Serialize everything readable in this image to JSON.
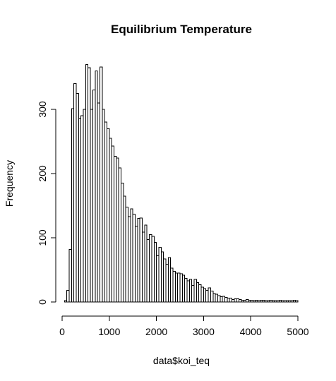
{
  "chart_data": {
    "type": "bar",
    "title": "Equilibrium Temperature",
    "xlabel": "data$koi_teq",
    "ylabel": "Frequency",
    "xlim": [
      0,
      5000
    ],
    "ylim": [
      0,
      370
    ],
    "bin_width": 50,
    "x_ticks": [
      0,
      1000,
      2000,
      3000,
      4000,
      5000
    ],
    "x_tick_labels": [
      "0",
      "1000",
      "2000",
      "3000",
      "4000",
      "5000"
    ],
    "y_ticks": [
      0,
      100,
      200,
      300
    ],
    "y_tick_labels": [
      "0",
      "100",
      "200",
      "300"
    ],
    "grid": false,
    "legend": "none",
    "bins_start": [
      50,
      100,
      150,
      200,
      250,
      300,
      350,
      400,
      450,
      500,
      550,
      600,
      650,
      700,
      750,
      800,
      850,
      900,
      950,
      1000,
      1050,
      1100,
      1150,
      1200,
      1250,
      1300,
      1350,
      1400,
      1450,
      1500,
      1550,
      1600,
      1650,
      1700,
      1750,
      1800,
      1850,
      1900,
      1950,
      2000,
      2050,
      2100,
      2150,
      2200,
      2250,
      2300,
      2350,
      2400,
      2450,
      2500,
      2550,
      2600,
      2650,
      2700,
      2750,
      2800,
      2850,
      2900,
      2950,
      3000,
      3050,
      3100,
      3150,
      3200,
      3250,
      3300,
      3350,
      3400,
      3450,
      3500,
      3550,
      3600,
      3650,
      3700,
      3750,
      3800,
      3850,
      3900,
      3950,
      4000,
      4050,
      4100,
      4150,
      4200,
      4250,
      4300,
      4350,
      4400,
      4450,
      4500,
      4550,
      4600,
      4650,
      4700,
      4750,
      4800,
      4850,
      4900,
      4950
    ],
    "values": [
      2,
      18,
      82,
      301,
      340,
      325,
      286,
      290,
      300,
      370,
      365,
      300,
      330,
      360,
      310,
      366,
      300,
      280,
      270,
      255,
      243,
      227,
      224,
      209,
      185,
      165,
      148,
      133,
      145,
      137,
      118,
      130,
      131,
      109,
      120,
      97,
      105,
      102,
      93,
      72,
      85,
      78,
      67,
      59,
      69,
      53,
      48,
      45,
      45,
      44,
      42,
      37,
      33,
      35,
      26,
      35,
      30,
      27,
      23,
      21,
      18,
      22,
      17,
      13,
      12,
      10,
      8,
      9,
      7,
      6,
      6,
      4,
      5,
      5,
      4,
      3,
      3,
      4,
      3,
      3,
      2,
      3,
      2,
      3,
      3,
      2,
      2,
      3,
      2,
      2,
      2,
      3,
      2,
      2,
      2,
      2,
      2,
      3,
      2
    ]
  }
}
